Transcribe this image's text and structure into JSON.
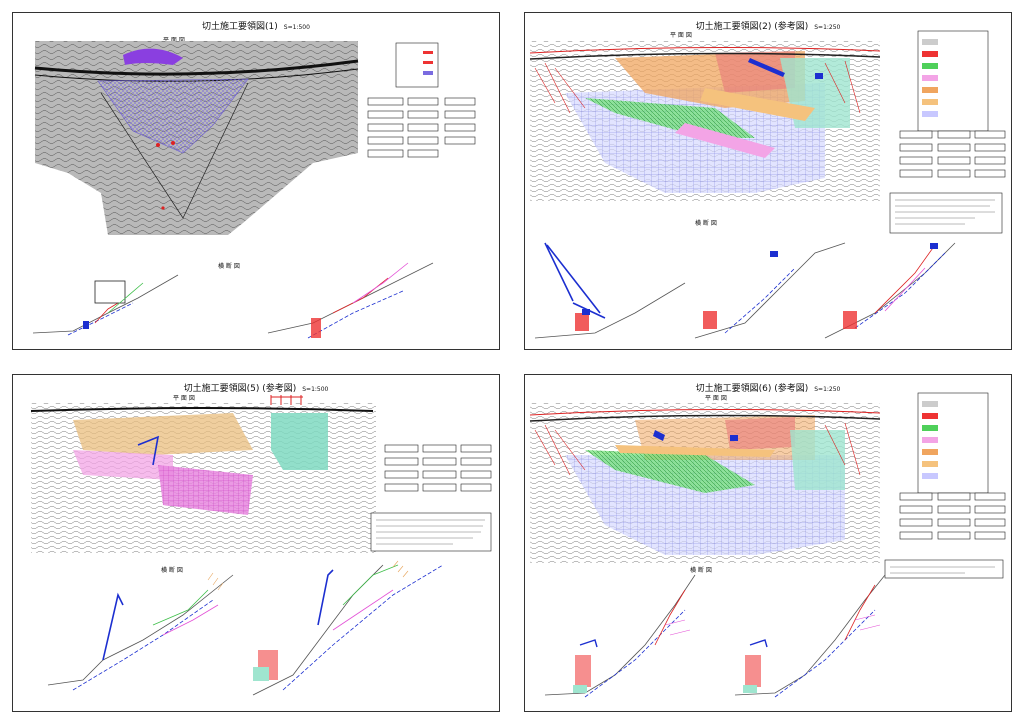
{
  "sheets": [
    {
      "id": "sheet-1",
      "title": "切土施工要領図(1)",
      "scale": "S=1:500",
      "plan_label": "平 面 図",
      "section_label": "横 断 図",
      "section_labels": [
        "",
        ""
      ]
    },
    {
      "id": "sheet-2",
      "title": "切土施工要領図(2) (参考図)",
      "scale": "S=1:250",
      "plan_label": "平 面 図",
      "section_label": "横 断 図",
      "section_labels": [
        "",
        "",
        ""
      ]
    },
    {
      "id": "sheet-3",
      "title": "切土施工要領図(5) (参考図)",
      "scale": "S=1:500",
      "plan_label": "平 面 図",
      "section_label": "横 断 図",
      "section_labels": [
        "",
        ""
      ]
    },
    {
      "id": "sheet-4",
      "title": "切土施工要領図(6) (参考図)",
      "scale": "S=1:250",
      "plan_label": "平 面 図",
      "section_label": "横 断 図",
      "section_labels": [
        "",
        ""
      ]
    }
  ],
  "colors": {
    "contour": "#555555",
    "road": "#111111",
    "purple_hatch": "#8f7fe0",
    "magenta": "#e34fd6",
    "orange": "#e7a45a",
    "green": "#3fbf4a",
    "teal": "#56c9b0",
    "red": "#d22020",
    "blue": "#1c2fd0",
    "gray_fill": "#9a9a9a"
  }
}
